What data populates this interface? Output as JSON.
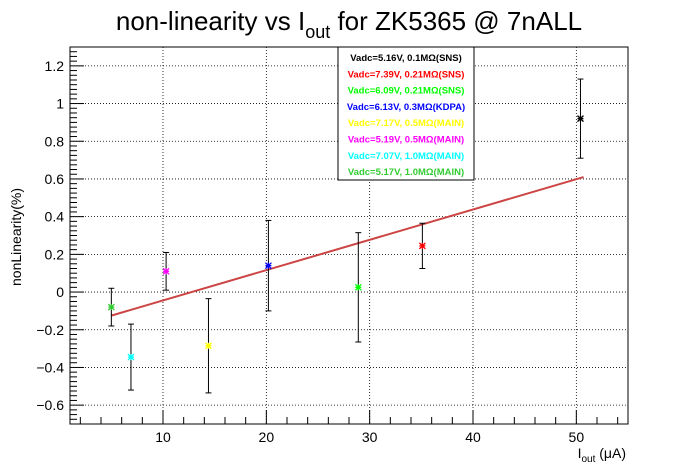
{
  "chart_data": {
    "type": "scatter",
    "title": {
      "prefix": "non-linearity vs I",
      "sub": "out",
      "suffix": "  for ZK5365 @ 7nALL"
    },
    "xlabel": {
      "main": "I",
      "sub": "out",
      "unit": " (μA)"
    },
    "ylabel": "nonLinearity(%)",
    "xlim": [
      1,
      55
    ],
    "ylim": [
      -0.7,
      1.3
    ],
    "x_ticks": [
      10,
      20,
      30,
      40,
      50
    ],
    "x_tick_labels": [
      "10",
      "20",
      "30",
      "40",
      "50"
    ],
    "y_ticks": [
      -0.6,
      -0.4,
      -0.2,
      0,
      0.2,
      0.4,
      0.6,
      0.8,
      1,
      1.2
    ],
    "y_tick_labels": [
      "−0.6",
      "−0.4",
      "−0.2",
      "0",
      "0.2",
      "0.4",
      "0.6",
      "0.8",
      "1",
      "1.2"
    ],
    "grid": true,
    "legend_position": "top-center",
    "series": [
      {
        "name": "Vadc=5.16V, 0.1MΩ(SNS)",
        "color": "#000000",
        "x": [
          50.4
        ],
        "y": [
          0.92
        ],
        "err": [
          0.21
        ]
      },
      {
        "name": "Vadc=7.39V, 0.21MΩ(SNS)",
        "color": "#ff0000",
        "x": [
          35.1
        ],
        "y": [
          0.245
        ],
        "err": [
          0.12
        ]
      },
      {
        "name": "Vadc=6.09V, 0.21MΩ(SNS)",
        "color": "#00ff00",
        "x": [
          28.9
        ],
        "y": [
          0.025
        ],
        "err": [
          0.29
        ]
      },
      {
        "name": "Vadc=6.13V, 0.3MΩ(KDPA)",
        "color": "#0000ff",
        "x": [
          20.2
        ],
        "y": [
          0.14
        ],
        "err": [
          0.24
        ]
      },
      {
        "name": "Vadc=7.17V, 0.5MΩ(MAIN)",
        "color": "#ffff00",
        "x": [
          14.4
        ],
        "y": [
          -0.285
        ],
        "err": [
          0.25
        ]
      },
      {
        "name": "Vadc=5.19V, 0.5MΩ(MAIN)",
        "color": "#ff00ff",
        "x": [
          10.3
        ],
        "y": [
          0.11
        ],
        "err": [
          0.1
        ]
      },
      {
        "name": "Vadc=7.07V, 1.0MΩ(MAIN)",
        "color": "#00ffff",
        "x": [
          6.9
        ],
        "y": [
          -0.345
        ],
        "err": [
          0.175
        ]
      },
      {
        "name": "Vadc=5.17V, 1.0MΩ(MAIN)",
        "color": "#33cc33",
        "x": [
          5.0
        ],
        "y": [
          -0.08
        ],
        "err": [
          0.1
        ]
      }
    ],
    "fit": {
      "type": "linear",
      "color": "#cc4444",
      "x": [
        5.0,
        50.7
      ],
      "y": [
        -0.125,
        0.61
      ]
    }
  }
}
